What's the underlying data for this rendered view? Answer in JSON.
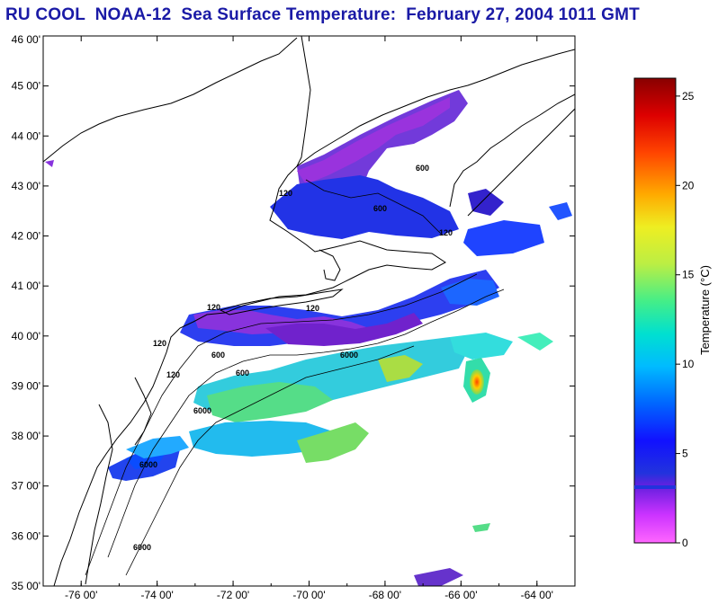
{
  "title": "RU COOL  NOAA-12  Sea Surface Temperature:  February 27, 2004 1011 GMT",
  "map": {
    "lon_range": [
      -77,
      -63
    ],
    "lat_range": [
      35,
      46
    ],
    "lon_ticks": [
      "-76 00'",
      "-74 00'",
      "-72 00'",
      "-70 00'",
      "-68 00'",
      "-66 00'",
      "-64 00'"
    ],
    "lat_ticks": [
      "35 00'",
      "36 00'",
      "37 00'",
      "38 00'",
      "39 00'",
      "40 00'",
      "41 00'",
      "42 00'",
      "43 00'",
      "44 00'",
      "45 00'",
      "46 00'"
    ],
    "contour_labels": [
      "120",
      "600",
      "120",
      "600",
      "120",
      "120",
      "600",
      "6000",
      "6000",
      "600",
      "120",
      "6000",
      "6000",
      "120"
    ]
  },
  "colorbar": {
    "label": "Temperature (°C)",
    "ticks": [
      "0",
      "5",
      "10",
      "15",
      "20",
      "25"
    ],
    "range": [
      0,
      26
    ]
  },
  "colors": {
    "title": "#1a1aa6",
    "land_line": "#000000"
  }
}
